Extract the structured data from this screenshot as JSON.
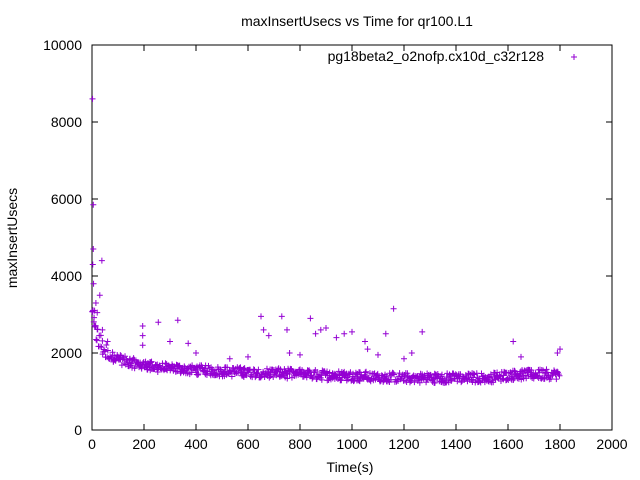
{
  "chart_data": {
    "type": "scatter",
    "title": "maxInsertUsecs vs Time for qr100.L1",
    "xlabel": "Time(s)",
    "ylabel": "maxInsertUsecs",
    "xlim": [
      0,
      2000
    ],
    "ylim": [
      0,
      10000
    ],
    "xticks": [
      "0",
      "200",
      "400",
      "600",
      "800",
      "1000",
      "1200",
      "1400",
      "1600",
      "1800",
      "2000"
    ],
    "yticks": [
      "0",
      "2000",
      "4000",
      "6000",
      "8000",
      "10000"
    ],
    "grid": false,
    "legend_position": "top-right",
    "marker": "+",
    "color": "#9400d3",
    "series": [
      {
        "name": "pg18beta2_o2nofp.cx10d_c32r128",
        "trend": [
          [
            1,
            3000
          ],
          [
            5,
            2800
          ],
          [
            10,
            2600
          ],
          [
            20,
            2450
          ],
          [
            30,
            2300
          ],
          [
            40,
            2150
          ],
          [
            50,
            2050
          ],
          [
            60,
            1980
          ],
          [
            80,
            1900
          ],
          [
            100,
            1850
          ],
          [
            120,
            1800
          ],
          [
            150,
            1750
          ],
          [
            200,
            1680
          ],
          [
            250,
            1630
          ],
          [
            300,
            1600
          ],
          [
            350,
            1580
          ],
          [
            400,
            1560
          ],
          [
            500,
            1520
          ],
          [
            600,
            1500
          ],
          [
            700,
            1480
          ],
          [
            800,
            1450
          ],
          [
            900,
            1420
          ],
          [
            1000,
            1400
          ],
          [
            1100,
            1380
          ],
          [
            1200,
            1360
          ],
          [
            1300,
            1350
          ],
          [
            1400,
            1350
          ],
          [
            1500,
            1360
          ],
          [
            1550,
            1370
          ],
          [
            1600,
            1420
          ],
          [
            1700,
            1440
          ],
          [
            1800,
            1450
          ]
        ],
        "outliers": [
          [
            2,
            8600
          ],
          [
            5,
            5850
          ],
          [
            5,
            4700
          ],
          [
            3,
            4300
          ],
          [
            6,
            3800
          ],
          [
            15,
            3300
          ],
          [
            10,
            3100
          ],
          [
            20,
            3050
          ],
          [
            30,
            3500
          ],
          [
            38,
            4400
          ],
          [
            40,
            2600
          ],
          [
            60,
            2300
          ],
          [
            195,
            2700
          ],
          [
            195,
            2450
          ],
          [
            195,
            2200
          ],
          [
            255,
            2800
          ],
          [
            300,
            2300
          ],
          [
            330,
            2850
          ],
          [
            370,
            2250
          ],
          [
            400,
            2000
          ],
          [
            530,
            1850
          ],
          [
            600,
            1900
          ],
          [
            650,
            2950
          ],
          [
            660,
            2600
          ],
          [
            680,
            2450
          ],
          [
            730,
            2950
          ],
          [
            750,
            2600
          ],
          [
            760,
            2000
          ],
          [
            800,
            1950
          ],
          [
            840,
            2900
          ],
          [
            860,
            2500
          ],
          [
            880,
            2600
          ],
          [
            900,
            2650
          ],
          [
            940,
            2400
          ],
          [
            970,
            2500
          ],
          [
            1000,
            2550
          ],
          [
            1050,
            2300
          ],
          [
            1060,
            2100
          ],
          [
            1100,
            1950
          ],
          [
            1130,
            2500
          ],
          [
            1160,
            3150
          ],
          [
            1200,
            1850
          ],
          [
            1230,
            2000
          ],
          [
            1270,
            2550
          ],
          [
            1620,
            2300
          ],
          [
            1650,
            1900
          ],
          [
            1790,
            2000
          ],
          [
            1800,
            2100
          ]
        ]
      }
    ]
  }
}
